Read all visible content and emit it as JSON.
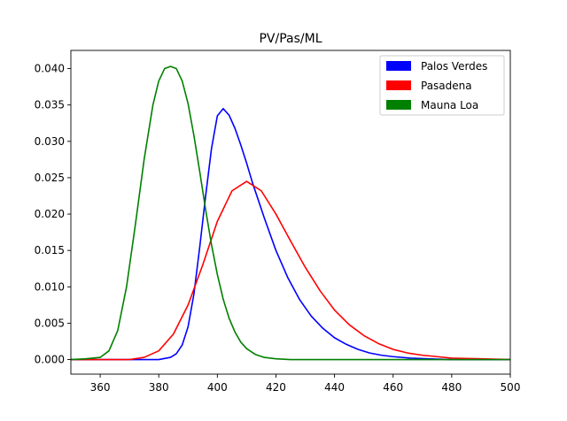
{
  "chart_data": {
    "type": "line",
    "title": "PV/Pas/ML",
    "xlabel": "",
    "ylabel": "",
    "xlim": [
      350,
      500
    ],
    "ylim": [
      -0.002,
      0.0425
    ],
    "xticks": [
      360,
      380,
      400,
      420,
      440,
      460,
      480,
      500
    ],
    "yticks": [
      0.0,
      0.005,
      0.01,
      0.015,
      0.02,
      0.025,
      0.03,
      0.035,
      0.04
    ],
    "ytick_labels": [
      "0.000",
      "0.005",
      "0.010",
      "0.015",
      "0.020",
      "0.025",
      "0.030",
      "0.035",
      "0.040"
    ],
    "grid": false,
    "legend_position": "top-right",
    "series": [
      {
        "name": "Palos Verdes",
        "color": "#0000ff",
        "x": [
          350,
          380,
          384,
          386,
          388,
          390,
          392,
          394,
          396,
          398,
          400,
          402,
          404,
          406,
          408,
          410,
          412,
          416,
          420,
          424,
          428,
          432,
          436,
          440,
          444,
          448,
          452,
          456,
          460,
          466,
          472,
          480,
          490,
          500
        ],
        "y": [
          0.0,
          0.0,
          0.0003,
          0.0008,
          0.002,
          0.0045,
          0.009,
          0.0155,
          0.0225,
          0.029,
          0.0335,
          0.0345,
          0.0336,
          0.0318,
          0.0295,
          0.027,
          0.0243,
          0.0195,
          0.015,
          0.0113,
          0.0083,
          0.006,
          0.0043,
          0.003,
          0.0021,
          0.0014,
          0.0009,
          0.0006,
          0.0004,
          0.0002,
          0.0001,
          0.0,
          0.0,
          0.0
        ]
      },
      {
        "name": "Pasadena",
        "color": "#ff0000",
        "x": [
          350,
          370,
          375,
          380,
          385,
          390,
          395,
          400,
          405,
          410,
          415,
          420,
          425,
          430,
          435,
          440,
          445,
          450,
          455,
          460,
          465,
          470,
          475,
          480,
          490,
          500
        ],
        "y": [
          0.0,
          0.0,
          0.0003,
          0.0012,
          0.0035,
          0.0075,
          0.013,
          0.019,
          0.0232,
          0.0245,
          0.0232,
          0.02,
          0.0163,
          0.0127,
          0.0095,
          0.0068,
          0.0048,
          0.0033,
          0.0022,
          0.0014,
          0.0009,
          0.0006,
          0.0004,
          0.0002,
          0.0001,
          0.0
        ]
      },
      {
        "name": "Mauna Loa",
        "color": "#008000",
        "x": [
          350,
          355,
          360,
          363,
          366,
          369,
          372,
          375,
          378,
          380,
          382,
          384,
          386,
          388,
          390,
          392,
          394,
          396,
          398,
          400,
          402,
          404,
          406,
          408,
          410,
          413,
          416,
          420,
          425,
          430,
          440,
          500
        ],
        "y": [
          0.0,
          0.0001,
          0.0003,
          0.0012,
          0.004,
          0.01,
          0.0185,
          0.0275,
          0.035,
          0.0383,
          0.04,
          0.0403,
          0.04,
          0.0383,
          0.0352,
          0.0308,
          0.0258,
          0.0206,
          0.0158,
          0.0117,
          0.0083,
          0.0057,
          0.0038,
          0.0024,
          0.0015,
          0.0007,
          0.0003,
          0.0001,
          0.0,
          0.0,
          0.0,
          0.0
        ]
      }
    ]
  }
}
